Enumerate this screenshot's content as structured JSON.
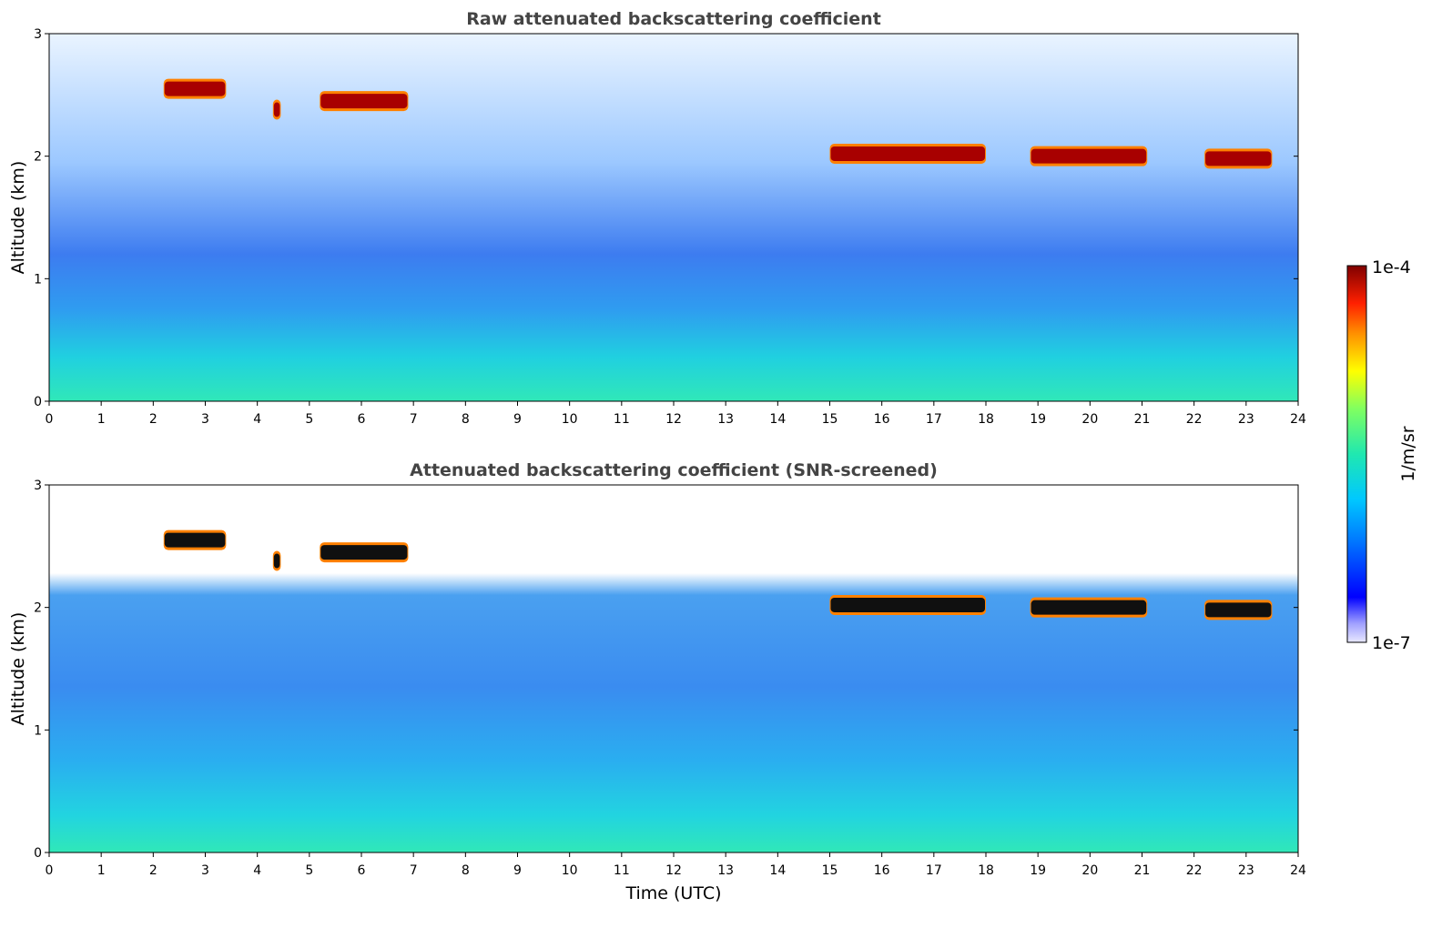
{
  "chart_data": [
    {
      "type": "heatmap",
      "title": "Raw attenuated backscattering coefficient",
      "xlabel": "",
      "ylabel": "Altitude (km)",
      "xlim": [
        0,
        24
      ],
      "ylim": [
        0,
        3
      ],
      "xticks": [
        "0",
        "1",
        "2",
        "3",
        "4",
        "5",
        "6",
        "7",
        "8",
        "9",
        "10",
        "11",
        "12",
        "13",
        "14",
        "15",
        "16",
        "17",
        "18",
        "19",
        "20",
        "21",
        "22",
        "23",
        "24"
      ],
      "yticks": [
        "0",
        "1",
        "2",
        "3"
      ],
      "cloud_layers": [
        {
          "t_start": 2.2,
          "t_end": 3.4,
          "alt_km": 2.55
        },
        {
          "t_start": 4.3,
          "t_end": 4.45,
          "alt_km": 2.38
        },
        {
          "t_start": 5.2,
          "t_end": 6.9,
          "alt_km": 2.45
        },
        {
          "t_start": 15.0,
          "t_end": 18.0,
          "alt_km": 2.02
        },
        {
          "t_start": 18.85,
          "t_end": 21.1,
          "alt_km": 2.0
        },
        {
          "t_start": 22.2,
          "t_end": 23.5,
          "alt_km": 1.98
        }
      ]
    },
    {
      "type": "heatmap",
      "title": "Attenuated backscattering coefficient (SNR-screened)",
      "xlabel": "Time (UTC)",
      "ylabel": "Altitude (km)",
      "xlim": [
        0,
        24
      ],
      "ylim": [
        0,
        3
      ],
      "xticks": [
        "0",
        "1",
        "2",
        "3",
        "4",
        "5",
        "6",
        "7",
        "8",
        "9",
        "10",
        "11",
        "12",
        "13",
        "14",
        "15",
        "16",
        "17",
        "18",
        "19",
        "20",
        "21",
        "22",
        "23",
        "24"
      ],
      "yticks": [
        "0",
        "1",
        "2",
        "3"
      ],
      "cloud_layers": [
        {
          "t_start": 2.2,
          "t_end": 3.4,
          "alt_km": 2.55
        },
        {
          "t_start": 4.3,
          "t_end": 4.45,
          "alt_km": 2.38
        },
        {
          "t_start": 5.2,
          "t_end": 6.9,
          "alt_km": 2.45
        },
        {
          "t_start": 15.0,
          "t_end": 18.0,
          "alt_km": 2.02
        },
        {
          "t_start": 18.85,
          "t_end": 21.1,
          "alt_km": 2.0
        },
        {
          "t_start": 22.2,
          "t_end": 23.5,
          "alt_km": 1.98
        }
      ]
    }
  ],
  "colorbar": {
    "label": "1/m/sr",
    "max_label": "1e-4",
    "min_label": "1e-7",
    "colormap": "jet",
    "colors": [
      "#e6e6ff",
      "#0000ff",
      "#00c8ff",
      "#2ee8a0",
      "#ffff00",
      "#ff6000",
      "#800000"
    ]
  }
}
